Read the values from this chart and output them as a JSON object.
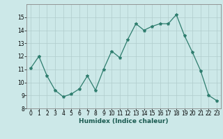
{
  "x": [
    0,
    1,
    2,
    3,
    4,
    5,
    6,
    7,
    8,
    9,
    10,
    11,
    12,
    13,
    14,
    15,
    16,
    17,
    18,
    19,
    20,
    21,
    22,
    23
  ],
  "y": [
    11.1,
    12.0,
    10.5,
    9.4,
    8.9,
    9.1,
    9.5,
    10.5,
    9.4,
    11.0,
    12.4,
    11.9,
    13.3,
    14.5,
    14.0,
    14.3,
    14.5,
    14.5,
    15.2,
    13.6,
    12.3,
    10.9,
    9.0,
    8.6
  ],
  "line_color": "#2e7d6e",
  "marker": "*",
  "marker_size": 3,
  "bg_color": "#cce8e8",
  "grid_color": "#b0cccc",
  "xlabel": "Humidex (Indice chaleur)",
  "ylim": [
    8,
    16
  ],
  "xlim": [
    -0.5,
    23.5
  ],
  "yticks": [
    8,
    9,
    10,
    11,
    12,
    13,
    14,
    15
  ],
  "xticks": [
    0,
    1,
    2,
    3,
    4,
    5,
    6,
    7,
    8,
    9,
    10,
    11,
    12,
    13,
    14,
    15,
    16,
    17,
    18,
    19,
    20,
    21,
    22,
    23
  ],
  "label_fontsize": 6.5,
  "tick_fontsize": 5.5
}
